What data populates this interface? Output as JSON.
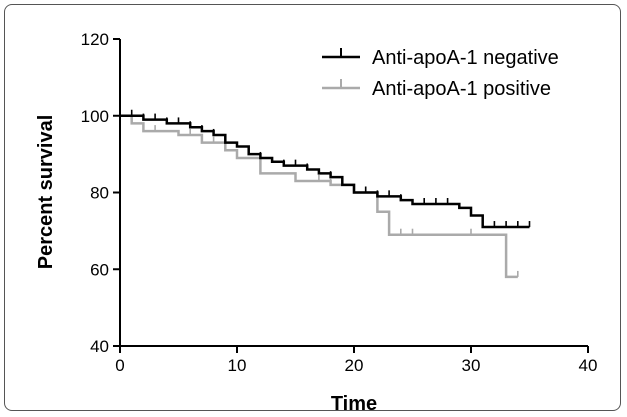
{
  "chart_data": {
    "type": "line",
    "step": true,
    "title": "",
    "xlabel": "Time",
    "ylabel": "Percent survival",
    "xlim": [
      0,
      40
    ],
    "ylim": [
      40,
      120
    ],
    "xticks": [
      0,
      10,
      20,
      30,
      40
    ],
    "yticks": [
      40,
      60,
      80,
      100,
      120
    ],
    "grid": false,
    "legend_position": "top-right",
    "series": [
      {
        "name": "Anti-apoA-1 negative",
        "color": "#000000",
        "steps": [
          [
            0,
            100
          ],
          [
            2,
            99
          ],
          [
            4,
            98
          ],
          [
            6,
            97
          ],
          [
            7,
            96
          ],
          [
            8,
            95
          ],
          [
            9,
            93
          ],
          [
            10,
            92
          ],
          [
            11,
            90
          ],
          [
            12,
            89
          ],
          [
            13,
            88
          ],
          [
            14,
            87
          ],
          [
            16,
            86
          ],
          [
            17,
            85
          ],
          [
            18,
            84
          ],
          [
            19,
            82
          ],
          [
            20,
            80
          ],
          [
            22,
            79
          ],
          [
            24,
            78
          ],
          [
            25,
            77
          ],
          [
            29,
            76
          ],
          [
            30,
            74
          ],
          [
            31,
            71
          ],
          [
            35,
            71
          ]
        ],
        "censored": [
          1,
          2,
          3,
          4,
          5,
          6,
          7,
          8,
          9,
          12,
          14,
          15,
          16,
          18,
          21,
          22,
          23,
          24,
          26,
          27,
          28,
          31,
          32,
          33,
          34,
          35
        ]
      },
      {
        "name": "Anti-apoA-1 positive",
        "color": "#aaaaaa",
        "steps": [
          [
            0,
            100
          ],
          [
            1,
            98
          ],
          [
            2,
            96
          ],
          [
            5,
            95
          ],
          [
            7,
            93
          ],
          [
            9,
            91
          ],
          [
            10,
            89
          ],
          [
            12,
            85
          ],
          [
            15,
            83
          ],
          [
            18,
            82
          ],
          [
            20,
            80
          ],
          [
            22,
            75
          ],
          [
            23,
            69
          ],
          [
            33,
            69
          ],
          [
            33,
            58
          ],
          [
            34,
            58
          ]
        ],
        "censored": [
          1,
          3,
          6,
          8,
          12,
          15,
          17,
          18,
          19,
          20,
          21,
          23,
          24,
          25,
          30,
          34
        ]
      }
    ]
  }
}
